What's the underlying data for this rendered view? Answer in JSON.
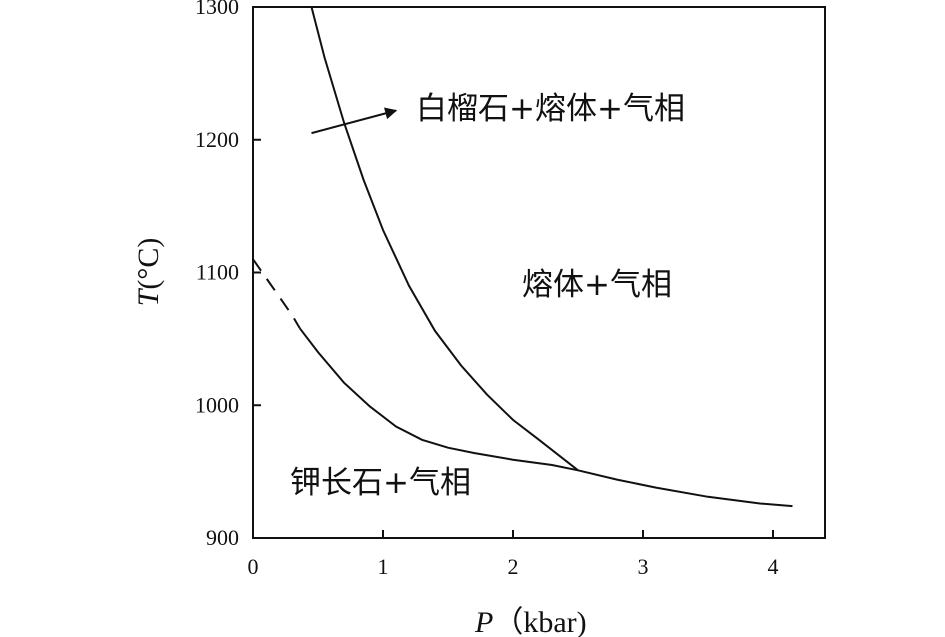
{
  "chart_data": {
    "type": "line",
    "title": "",
    "xlabel": {
      "symbol": "P",
      "unit": "（kbar)"
    },
    "ylabel": {
      "symbol": "T",
      "unit": "(°C)"
    },
    "xlim": [
      0,
      4.4
    ],
    "ylim": [
      900,
      1300
    ],
    "x_ticks": [
      "0",
      "1",
      "2",
      "3",
      "4"
    ],
    "y_ticks": [
      "900",
      "1000",
      "1100",
      "1200",
      "1300"
    ],
    "grid": false,
    "series": [
      {
        "role": "solidus",
        "style": "solid",
        "x": [
          0.36,
          0.5,
          0.7,
          0.9,
          1.1,
          1.3,
          1.5,
          1.7,
          2.0,
          2.3,
          2.5,
          2.8,
          3.1,
          3.5,
          3.9,
          4.15
        ],
        "y": [
          1058,
          1040,
          1017,
          999,
          984,
          974,
          968,
          964,
          959,
          955,
          951,
          944,
          938,
          931,
          926,
          924
        ]
      },
      {
        "role": "solidus-extrapolated",
        "style": "dashed",
        "x": [
          0.0,
          0.1,
          0.2,
          0.3,
          0.36
        ],
        "y": [
          1110,
          1096,
          1082,
          1068,
          1058
        ]
      },
      {
        "role": "leucite-boundary",
        "style": "solid",
        "x": [
          0.45,
          0.55,
          0.7,
          0.85,
          1.0,
          1.2,
          1.4,
          1.6,
          1.8,
          2.0,
          2.2,
          2.5
        ],
        "y": [
          1300,
          1262,
          1213,
          1170,
          1132,
          1090,
          1056,
          1030,
          1008,
          989,
          974,
          951
        ]
      }
    ],
    "regions": [
      {
        "label": "白榴石+熔体+气相",
        "pointer": {
          "from": [
            0.45,
            1205
          ],
          "to": [
            1.1,
            1222
          ]
        }
      },
      {
        "label": "熔体+气相"
      },
      {
        "label": "钾长石+气相"
      }
    ]
  }
}
